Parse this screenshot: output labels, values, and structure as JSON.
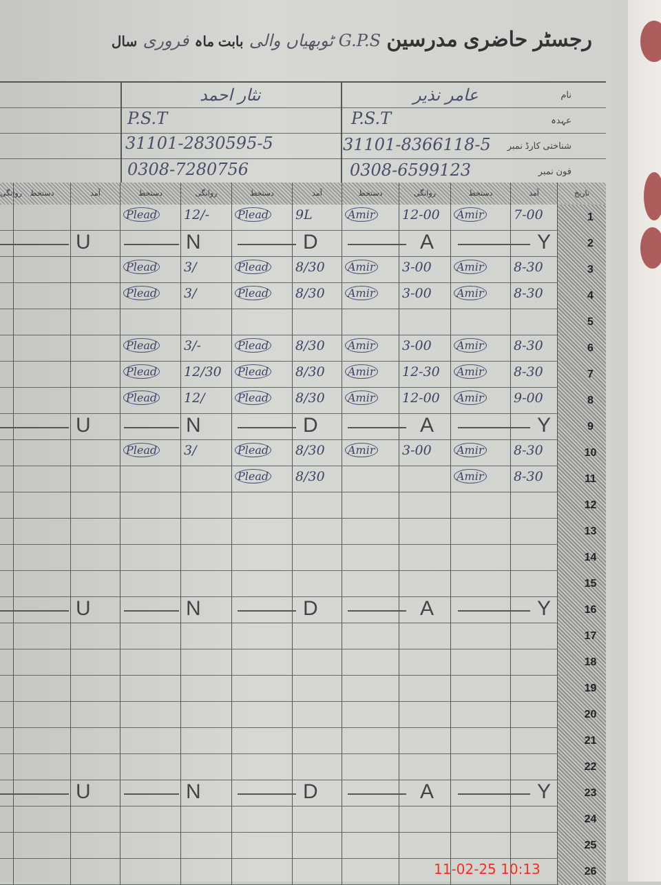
{
  "header": {
    "title": "رجسٹر حاضری مدرسین",
    "school": "G.P.S ٹوبھیاں والی",
    "month_label": "بابت ماہ",
    "month": "فروری",
    "year_label": "سال"
  },
  "info": {
    "labels": [
      "نام",
      "عہدہ",
      "شناختی کارڈ نمبر",
      "فون نمبر"
    ],
    "teacher_1": {
      "name": "عامر نذیر",
      "designation": "P.S.T",
      "cnic": "31101-8366118-5",
      "phone": "0308-6599123"
    },
    "teacher_2": {
      "name": "نثار احمد",
      "designation": "P.S.T",
      "cnic": "31101-2830595-5",
      "phone": "0308-7280756"
    }
  },
  "columns": {
    "date": "تاریخ",
    "arrival": "آمد",
    "signature": "دستخط",
    "departure": "روانگی"
  },
  "sunday_letters": [
    "U",
    "N",
    "D",
    "A",
    "Y"
  ],
  "rows": [
    {
      "day": "1",
      "cells": [
        "7-00",
        "Amir",
        "12-00",
        "Amir",
        "9L",
        "Plead",
        "12/-",
        "Plead"
      ]
    },
    {
      "day": "2",
      "sunday": true
    },
    {
      "day": "3",
      "cells": [
        "8-30",
        "Amir",
        "3-00",
        "Amir",
        "8/30",
        "Plead",
        "3/",
        "Plead"
      ]
    },
    {
      "day": "4",
      "cells": [
        "8-30",
        "Amir",
        "3-00",
        "Amir",
        "8/30",
        "Plead",
        "3/",
        "Plead"
      ]
    },
    {
      "day": "5",
      "cells": [
        "",
        "",
        "",
        "",
        "",
        "",
        "",
        ""
      ]
    },
    {
      "day": "6",
      "cells": [
        "8-30",
        "Amir",
        "3-00",
        "Amir",
        "8/30",
        "Plead",
        "3/-",
        "Plead"
      ]
    },
    {
      "day": "7",
      "cells": [
        "8-30",
        "Amir",
        "12-30",
        "Amir",
        "8/30",
        "Plead",
        "12/30",
        "Plead"
      ]
    },
    {
      "day": "8",
      "cells": [
        "9-00",
        "Amir",
        "12-00",
        "Amir",
        "8/30",
        "Plead",
        "12/",
        "Plead"
      ]
    },
    {
      "day": "9",
      "sunday": true
    },
    {
      "day": "10",
      "cells": [
        "8-30",
        "Amir",
        "3-00",
        "Amir",
        "8/30",
        "Plead",
        "3/",
        "Plead"
      ]
    },
    {
      "day": "11",
      "cells": [
        "8-30",
        "Amir",
        "",
        "",
        "8/30",
        "Plead",
        "",
        ""
      ]
    },
    {
      "day": "12"
    },
    {
      "day": "13"
    },
    {
      "day": "14"
    },
    {
      "day": "15"
    },
    {
      "day": "16",
      "sunday": true
    },
    {
      "day": "17"
    },
    {
      "day": "18"
    },
    {
      "day": "19"
    },
    {
      "day": "20"
    },
    {
      "day": "21"
    },
    {
      "day": "22"
    },
    {
      "day": "23",
      "sunday": true
    },
    {
      "day": "24"
    },
    {
      "day": "25"
    },
    {
      "day": "26"
    }
  ],
  "timestamp": "11-02-25 10:13"
}
